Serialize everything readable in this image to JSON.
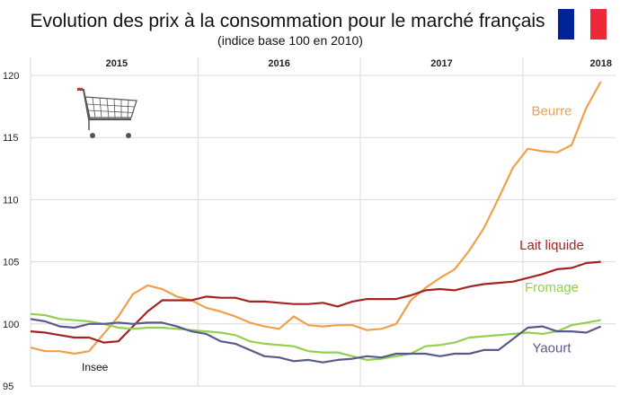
{
  "chart_data": {
    "type": "line",
    "title": "Evolution des prix à la consommation pour le marché français",
    "subtitle": "(indice base 100 en 2010)",
    "source": "Insee",
    "ylim": [
      95,
      120
    ],
    "yticks": [
      95,
      100,
      105,
      110,
      115,
      120
    ],
    "xlim": [
      0,
      36
    ],
    "years": [
      {
        "label": "2015",
        "center": 5.3
      },
      {
        "label": "2016",
        "center": 15.3
      },
      {
        "label": "2017",
        "center": 25.3
      },
      {
        "label": "2018",
        "center": 35.1
      }
    ],
    "year_boundaries": [
      10.3,
      20.3,
      30.3
    ],
    "grid": true,
    "series": [
      {
        "name": "Beurre",
        "color": "#f0a04b",
        "values": [
          98.1,
          97.8,
          97.8,
          97.6,
          97.8,
          99.2,
          100.6,
          102.4,
          103.1,
          102.8,
          102.2,
          101.9,
          101.3,
          101.0,
          100.6,
          100.1,
          99.8,
          99.6,
          100.6,
          99.9,
          99.8,
          99.9,
          99.9,
          99.5,
          99.6,
          100.0,
          101.9,
          102.9,
          103.7,
          104.4,
          105.9,
          107.7,
          110.1,
          112.6,
          114.1,
          113.9,
          113.8,
          114.4,
          117.4,
          119.5
        ]
      },
      {
        "name": "Lait liquide",
        "color": "#a52422",
        "values": [
          99.4,
          99.3,
          99.1,
          98.9,
          98.9,
          98.5,
          98.6,
          99.8,
          101.0,
          101.9,
          101.9,
          101.9,
          102.2,
          102.1,
          102.1,
          101.8,
          101.8,
          101.7,
          101.6,
          101.6,
          101.7,
          101.4,
          101.8,
          102.0,
          102.0,
          102.0,
          102.3,
          102.7,
          102.8,
          102.7,
          103.0,
          103.2,
          103.3,
          103.4,
          103.7,
          104.0,
          104.4,
          104.5,
          104.9,
          105.0
        ]
      },
      {
        "name": "Fromage",
        "color": "#92d050",
        "values": [
          100.8,
          100.7,
          100.4,
          100.3,
          100.2,
          100.0,
          99.7,
          99.6,
          99.7,
          99.7,
          99.6,
          99.5,
          99.4,
          99.3,
          99.1,
          98.6,
          98.4,
          98.3,
          98.2,
          97.8,
          97.7,
          97.7,
          97.4,
          97.1,
          97.2,
          97.4,
          97.6,
          98.2,
          98.3,
          98.5,
          98.9,
          99.0,
          99.1,
          99.2,
          99.3,
          99.2,
          99.4,
          99.9,
          100.1,
          100.3
        ]
      },
      {
        "name": "Yaourt",
        "color": "#5a5a8a",
        "values": [
          100.4,
          100.2,
          99.8,
          99.7,
          100.0,
          100.0,
          100.1,
          100.0,
          100.1,
          100.1,
          99.8,
          99.4,
          99.2,
          98.6,
          98.4,
          97.9,
          97.4,
          97.3,
          97.0,
          97.1,
          96.9,
          97.1,
          97.2,
          97.4,
          97.3,
          97.6,
          97.6,
          97.6,
          97.4,
          97.6,
          97.6,
          97.9,
          97.9,
          98.8,
          99.7,
          99.8,
          99.4,
          99.4,
          99.3,
          99.8
        ]
      }
    ],
    "series_labels": [
      {
        "name": "Beurre",
        "value": 116.8
      },
      {
        "name": "Lait liquide",
        "value": 106.0
      },
      {
        "name": "Fromage",
        "value": 102.6
      },
      {
        "name": "Yaourt",
        "value": 97.7
      }
    ]
  },
  "icons": {
    "flag": "french-flag-icon",
    "cart": "shopping-cart-icon",
    "flag_colors": [
      "#002395",
      "#ffffff",
      "#ed2939"
    ]
  }
}
